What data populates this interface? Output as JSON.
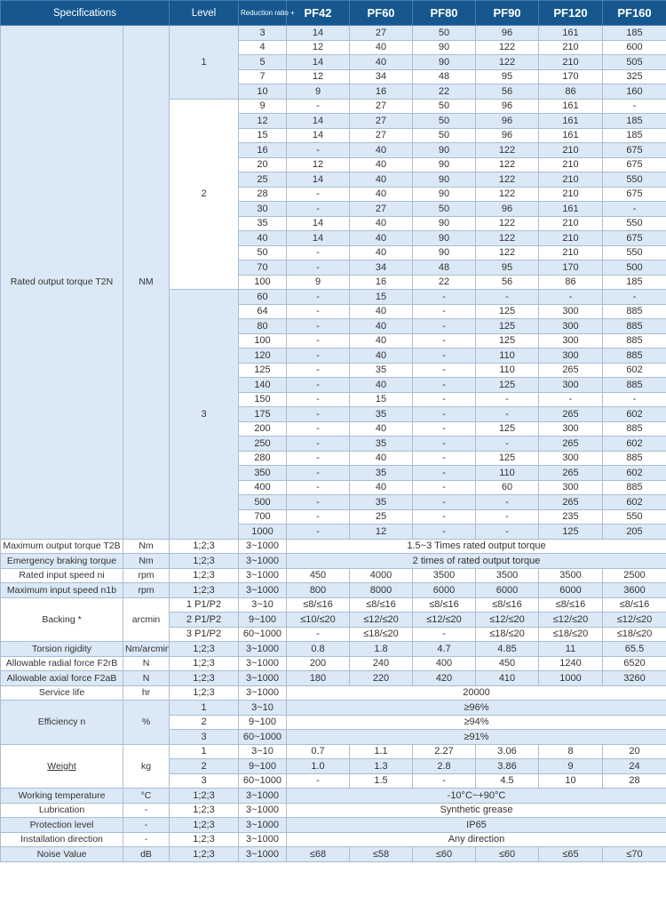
{
  "header": {
    "specifications": "Specifications",
    "level": "Level",
    "reduction_ratio": "Reduction ratio +",
    "models": [
      "PF42",
      "PF60",
      "PF80",
      "PF90",
      "PF120",
      "PF160"
    ]
  },
  "colors": {
    "header_bg": "#16578f",
    "row_alt": "#dbe8f5",
    "fixed_cell": "#d7e4f2",
    "border": "#a9bed3"
  },
  "torque": {
    "name": "Rated output torque T2N",
    "unit": "NM",
    "groups": [
      {
        "level": "1",
        "rows": [
          {
            "ratio": "3",
            "values": [
              "14",
              "27",
              "50",
              "96",
              "161",
              "185"
            ]
          },
          {
            "ratio": "4",
            "values": [
              "12",
              "40",
              "90",
              "122",
              "210",
              "600"
            ]
          },
          {
            "ratio": "5",
            "values": [
              "14",
              "40",
              "90",
              "122",
              "210",
              "505"
            ]
          },
          {
            "ratio": "7",
            "values": [
              "12",
              "34",
              "48",
              "95",
              "170",
              "325"
            ]
          },
          {
            "ratio": "10",
            "values": [
              "9",
              "16",
              "22",
              "56",
              "86",
              "160"
            ]
          }
        ]
      },
      {
        "level": "2",
        "rows": [
          {
            "ratio": "9",
            "values": [
              "-",
              "27",
              "50",
              "96",
              "161",
              "-"
            ]
          },
          {
            "ratio": "12",
            "values": [
              "14",
              "27",
              "50",
              "96",
              "161",
              "185"
            ]
          },
          {
            "ratio": "15",
            "values": [
              "14",
              "27",
              "50",
              "96",
              "161",
              "185"
            ]
          },
          {
            "ratio": "16",
            "values": [
              "-",
              "40",
              "90",
              "122",
              "210",
              "675"
            ]
          },
          {
            "ratio": "20",
            "values": [
              "12",
              "40",
              "90",
              "122",
              "210",
              "675"
            ]
          },
          {
            "ratio": "25",
            "values": [
              "14",
              "40",
              "90",
              "122",
              "210",
              "550"
            ]
          },
          {
            "ratio": "28",
            "values": [
              "-",
              "40",
              "90",
              "122",
              "210",
              "675"
            ]
          },
          {
            "ratio": "30",
            "values": [
              "-",
              "27",
              "50",
              "96",
              "161",
              "-"
            ]
          },
          {
            "ratio": "35",
            "values": [
              "14",
              "40",
              "90",
              "122",
              "210",
              "550"
            ]
          },
          {
            "ratio": "40",
            "values": [
              "14",
              "40",
              "90",
              "122",
              "210",
              "675"
            ]
          },
          {
            "ratio": "50",
            "values": [
              "-",
              "40",
              "90",
              "122",
              "210",
              "550"
            ]
          },
          {
            "ratio": "70",
            "values": [
              "-",
              "34",
              "48",
              "95",
              "170",
              "500"
            ]
          },
          {
            "ratio": "100",
            "values": [
              "9",
              "16",
              "22",
              "56",
              "86",
              "185"
            ]
          }
        ]
      },
      {
        "level": "3",
        "rows": [
          {
            "ratio": "60",
            "values": [
              "-",
              "15",
              "-",
              "-",
              "-",
              "-"
            ]
          },
          {
            "ratio": "64",
            "values": [
              "-",
              "40",
              "-",
              "125",
              "300",
              "885"
            ]
          },
          {
            "ratio": "80",
            "values": [
              "-",
              "40",
              "-",
              "125",
              "300",
              "885"
            ]
          },
          {
            "ratio": "100",
            "values": [
              "-",
              "40",
              "-",
              "125",
              "300",
              "885"
            ]
          },
          {
            "ratio": "120",
            "values": [
              "-",
              "40",
              "-",
              "110",
              "300",
              "885"
            ]
          },
          {
            "ratio": "125",
            "values": [
              "-",
              "35",
              "-",
              "110",
              "265",
              "602"
            ]
          },
          {
            "ratio": "140",
            "values": [
              "-",
              "40",
              "-",
              "125",
              "300",
              "885"
            ]
          },
          {
            "ratio": "150",
            "values": [
              "-",
              "15",
              "-",
              "-",
              "-",
              "-"
            ]
          },
          {
            "ratio": "175",
            "values": [
              "-",
              "35",
              "-",
              "-",
              "265",
              "602"
            ]
          },
          {
            "ratio": "200",
            "values": [
              "-",
              "40",
              "-",
              "125",
              "300",
              "885"
            ]
          },
          {
            "ratio": "250",
            "values": [
              "-",
              "35",
              "-",
              "-",
              "265",
              "602"
            ]
          },
          {
            "ratio": "280",
            "values": [
              "-",
              "40",
              "-",
              "125",
              "300",
              "885"
            ]
          },
          {
            "ratio": "350",
            "values": [
              "-",
              "35",
              "-",
              "110",
              "265",
              "602"
            ]
          },
          {
            "ratio": "400",
            "values": [
              "-",
              "40",
              "-",
              "60",
              "300",
              "885"
            ]
          },
          {
            "ratio": "500",
            "values": [
              "-",
              "35",
              "-",
              "-",
              "265",
              "602"
            ]
          },
          {
            "ratio": "700",
            "values": [
              "-",
              "25",
              "-",
              "-",
              "235",
              "550"
            ]
          },
          {
            "ratio": "1000",
            "values": [
              "-",
              "12",
              "-",
              "-",
              "125",
              "205"
            ]
          }
        ]
      }
    ]
  },
  "sections": [
    {
      "name": "Maximum output torque T2B",
      "unit": "Nm",
      "rows": [
        {
          "level": "1;2;3",
          "ratio": "3~1000",
          "span": "1.5~3 Times rated output torque"
        }
      ]
    },
    {
      "name": "Emergency braking torque",
      "unit": "Nm",
      "rows": [
        {
          "level": "1;2;3",
          "ratio": "3~1000",
          "span": "2 times of rated output torque"
        }
      ]
    },
    {
      "name": "Rated input speed ni",
      "unit": "rpm",
      "rows": [
        {
          "level": "1;2;3",
          "ratio": "3~1000",
          "values": [
            "450",
            "4000",
            "3500",
            "3500",
            "3500",
            "2500"
          ]
        }
      ]
    },
    {
      "name": "Maximum input speed n1b",
      "unit": "rpm",
      "rows": [
        {
          "level": "1;2;3",
          "ratio": "3~1000",
          "values": [
            "800",
            "8000",
            "6000",
            "6000",
            "6000",
            "3600"
          ]
        }
      ]
    },
    {
      "name": "Backing *",
      "unit": "arcmin",
      "rows": [
        {
          "level": "1 P1/P2",
          "ratio": "3~10",
          "values": [
            "≤8/≤16",
            "≤8/≤16",
            "≤8/≤16",
            "≤8/≤16",
            "≤8/≤16",
            "≤8/≤16"
          ]
        },
        {
          "level": "2 P1/P2",
          "ratio": "9~100",
          "values": [
            "≤10/≤20",
            "≤12/≤20",
            "≤12/≤20",
            "≤12/≤20",
            "≤12/≤20",
            "≤12/≤20"
          ]
        },
        {
          "level": "3 P1/P2",
          "ratio": "60~1000",
          "values": [
            "-",
            "≤18/≤20",
            "-",
            "≤18/≤20",
            "≤18/≤20",
            "≤18/≤20"
          ]
        }
      ]
    },
    {
      "name": "Torsion rigidity",
      "unit": "Nm/arcmin",
      "rows": [
        {
          "level": "1;2;3",
          "ratio": "3~1000",
          "values": [
            "0.8",
            "1.8",
            "4.7",
            "4.85",
            "11",
            "65.5"
          ]
        }
      ]
    },
    {
      "name": "Allowable radial force F2rB",
      "unit": "N",
      "rows": [
        {
          "level": "1;2;3",
          "ratio": "3~1000",
          "values": [
            "200",
            "240",
            "400",
            "450",
            "1240",
            "6520"
          ]
        }
      ]
    },
    {
      "name": "Allowable axial force F2aB",
      "unit": "N",
      "rows": [
        {
          "level": "1;2;3",
          "ratio": "3~1000",
          "values": [
            "180",
            "220",
            "420",
            "410",
            "1000",
            "3260"
          ]
        }
      ]
    },
    {
      "name": "Service life",
      "unit": "hr",
      "rows": [
        {
          "level": "1;2;3",
          "ratio": "3~1000",
          "span": "20000"
        }
      ]
    },
    {
      "name": "Efficiency n",
      "unit": "%",
      "rows": [
        {
          "level": "1",
          "ratio": "3~10",
          "span": "≥96%"
        },
        {
          "level": "2",
          "ratio": "9~100",
          "span": "≥94%"
        },
        {
          "level": "3",
          "ratio": "60~1000",
          "span": "≥91%"
        }
      ]
    },
    {
      "name": "Weight",
      "unit": "kg",
      "underline": true,
      "rows": [
        {
          "level": "1",
          "ratio": "3~10",
          "values": [
            "0.7",
            "1.1",
            "2.27",
            "3.06",
            "8",
            "20"
          ]
        },
        {
          "level": "2",
          "ratio": "9~100",
          "values": [
            "1.0",
            "1.3",
            "2.8",
            "3.86",
            "9",
            "24"
          ]
        },
        {
          "level": "3",
          "ratio": "60~1000",
          "values": [
            "-",
            "1.5",
            "-",
            "4.5",
            "10",
            "28"
          ]
        }
      ]
    },
    {
      "name": "Working temperature",
      "unit": "°C",
      "rows": [
        {
          "level": "1;2;3",
          "ratio": "3~1000",
          "span": "-10°C~+90°C"
        }
      ]
    },
    {
      "name": "Lubrication",
      "unit": "-",
      "rows": [
        {
          "level": "1;2;3",
          "ratio": "3~1000",
          "span": "Synthetic grease"
        }
      ]
    },
    {
      "name": "Protection level",
      "unit": "-",
      "rows": [
        {
          "level": "1;2;3",
          "ratio": "3~1000",
          "span": "IP65"
        }
      ]
    },
    {
      "name": "Installation direction",
      "unit": "-",
      "rows": [
        {
          "level": "1;2;3",
          "ratio": "3~1000",
          "span": "Any direction"
        }
      ]
    },
    {
      "name": "Noise Value",
      "unit": "dB",
      "rows": [
        {
          "level": "1;2;3",
          "ratio": "3~1000",
          "values": [
            "≤68",
            "≤58",
            "≤60",
            "≤60",
            "≤65",
            "≤70"
          ]
        }
      ]
    }
  ]
}
